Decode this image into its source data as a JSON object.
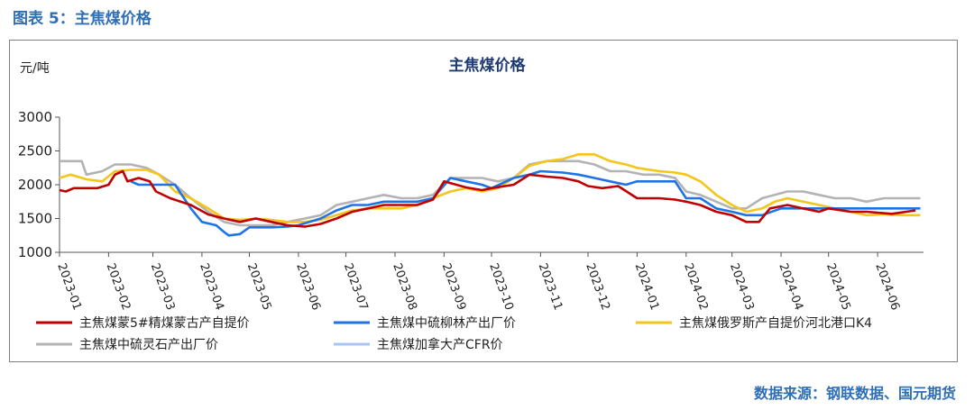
{
  "figure_title": "图表 5：主焦煤价格",
  "source_note": "数据来源：钢联数据、国元期货",
  "chart_data": {
    "type": "line",
    "title": "主焦煤价格",
    "ylabel": "元/吨",
    "xlabel": "",
    "ylim": [
      1000,
      3000
    ],
    "yticks": [
      1000,
      1500,
      2000,
      2500,
      3000
    ],
    "xlim": [
      "2023-01-01",
      "2024-06-30"
    ],
    "xticks": [
      "2023-01",
      "2023-02",
      "2023-03",
      "2023-04",
      "2023-05",
      "2023-06",
      "2023-07",
      "2023-08",
      "2023-09",
      "2023-10",
      "2023-11",
      "2023-12",
      "2024-01",
      "2024-02",
      "2024-03",
      "2024-04",
      "2024-05",
      "2024-06"
    ],
    "grid": false,
    "legend_position": "bottom",
    "series": [
      {
        "name": "主焦煤蒙5#精煤蒙古产自提价",
        "color": "#c00000",
        "points": [
          [
            "2023-01-01",
            1920
          ],
          [
            "2023-01-05",
            1900
          ],
          [
            "2023-01-10",
            1950
          ],
          [
            "2023-01-25",
            1950
          ],
          [
            "2023-02-01",
            2000
          ],
          [
            "2023-02-05",
            2150
          ],
          [
            "2023-02-10",
            2200
          ],
          [
            "2023-02-13",
            2050
          ],
          [
            "2023-02-20",
            2100
          ],
          [
            "2023-02-27",
            2050
          ],
          [
            "2023-03-03",
            1900
          ],
          [
            "2023-03-12",
            1800
          ],
          [
            "2023-03-25",
            1700
          ],
          [
            "2023-04-05",
            1560
          ],
          [
            "2023-04-15",
            1500
          ],
          [
            "2023-04-25",
            1450
          ],
          [
            "2023-05-05",
            1500
          ],
          [
            "2023-05-15",
            1450
          ],
          [
            "2023-05-25",
            1400
          ],
          [
            "2023-06-05",
            1380
          ],
          [
            "2023-06-15",
            1420
          ],
          [
            "2023-06-25",
            1500
          ],
          [
            "2023-07-05",
            1600
          ],
          [
            "2023-07-15",
            1650
          ],
          [
            "2023-07-25",
            1700
          ],
          [
            "2023-08-05",
            1700
          ],
          [
            "2023-08-15",
            1700
          ],
          [
            "2023-08-25",
            1780
          ],
          [
            "2023-09-01",
            2050
          ],
          [
            "2023-09-15",
            1960
          ],
          [
            "2023-09-25",
            1920
          ],
          [
            "2023-10-01",
            1950
          ],
          [
            "2023-10-15",
            2000
          ],
          [
            "2023-10-25",
            2150
          ],
          [
            "2023-11-05",
            2120
          ],
          [
            "2023-11-15",
            2100
          ],
          [
            "2023-11-25",
            2050
          ],
          [
            "2023-12-01",
            1980
          ],
          [
            "2023-12-10",
            1950
          ],
          [
            "2023-12-20",
            1980
          ],
          [
            "2024-01-01",
            1800
          ],
          [
            "2024-01-15",
            1800
          ],
          [
            "2024-01-25",
            1780
          ],
          [
            "2024-02-01",
            1750
          ],
          [
            "2024-02-10",
            1700
          ],
          [
            "2024-02-20",
            1600
          ],
          [
            "2024-03-01",
            1550
          ],
          [
            "2024-03-10",
            1450
          ],
          [
            "2024-03-18",
            1450
          ],
          [
            "2024-03-25",
            1650
          ],
          [
            "2024-04-05",
            1700
          ],
          [
            "2024-04-15",
            1650
          ],
          [
            "2024-04-25",
            1600
          ],
          [
            "2024-05-01",
            1650
          ],
          [
            "2024-05-15",
            1600
          ],
          [
            "2024-05-25",
            1600
          ],
          [
            "2024-06-10",
            1570
          ],
          [
            "2024-06-25",
            1620
          ]
        ]
      },
      {
        "name": "主焦煤中硫柳林产出厂价",
        "color": "#1e73e6",
        "points": [
          [
            "2023-02-15",
            2050
          ],
          [
            "2023-02-20",
            2000
          ],
          [
            "2023-03-01",
            2000
          ],
          [
            "2023-03-15",
            2000
          ],
          [
            "2023-03-25",
            1650
          ],
          [
            "2023-04-01",
            1450
          ],
          [
            "2023-04-10",
            1400
          ],
          [
            "2023-04-15",
            1300
          ],
          [
            "2023-04-18",
            1250
          ],
          [
            "2023-04-25",
            1270
          ],
          [
            "2023-05-01",
            1370
          ],
          [
            "2023-05-15",
            1370
          ],
          [
            "2023-05-25",
            1380
          ],
          [
            "2023-06-01",
            1400
          ],
          [
            "2023-06-15",
            1500
          ],
          [
            "2023-06-25",
            1620
          ],
          [
            "2023-07-05",
            1700
          ],
          [
            "2023-07-15",
            1700
          ],
          [
            "2023-07-25",
            1750
          ],
          [
            "2023-08-05",
            1750
          ],
          [
            "2023-08-15",
            1750
          ],
          [
            "2023-08-25",
            1800
          ],
          [
            "2023-09-05",
            2100
          ],
          [
            "2023-09-15",
            2050
          ],
          [
            "2023-09-25",
            2000
          ],
          [
            "2023-10-01",
            1950
          ],
          [
            "2023-10-15",
            2100
          ],
          [
            "2023-10-25",
            2150
          ],
          [
            "2023-11-01",
            2200
          ],
          [
            "2023-11-15",
            2180
          ],
          [
            "2023-11-25",
            2150
          ],
          [
            "2023-12-05",
            2100
          ],
          [
            "2023-12-15",
            2050
          ],
          [
            "2023-12-25",
            2000
          ],
          [
            "2024-01-01",
            2050
          ],
          [
            "2024-01-15",
            2050
          ],
          [
            "2024-01-25",
            2050
          ],
          [
            "2024-02-01",
            1800
          ],
          [
            "2024-02-10",
            1800
          ],
          [
            "2024-02-20",
            1650
          ],
          [
            "2024-03-01",
            1600
          ],
          [
            "2024-03-10",
            1550
          ],
          [
            "2024-03-20",
            1550
          ],
          [
            "2024-04-01",
            1650
          ],
          [
            "2024-04-15",
            1650
          ],
          [
            "2024-04-25",
            1650
          ],
          [
            "2024-05-05",
            1650
          ],
          [
            "2024-05-20",
            1650
          ],
          [
            "2024-06-10",
            1650
          ],
          [
            "2024-06-28",
            1650
          ]
        ]
      },
      {
        "name": "主焦煤俄罗斯产自提价河北港口K4",
        "color": "#f5c518",
        "points": [
          [
            "2023-01-01",
            2100
          ],
          [
            "2023-01-08",
            2150
          ],
          [
            "2023-01-18",
            2080
          ],
          [
            "2023-01-28",
            2050
          ],
          [
            "2023-02-05",
            2200
          ],
          [
            "2023-02-15",
            2220
          ],
          [
            "2023-02-25",
            2220
          ],
          [
            "2023-03-05",
            2150
          ],
          [
            "2023-03-15",
            1900
          ],
          [
            "2023-03-25",
            1800
          ],
          [
            "2023-04-05",
            1650
          ],
          [
            "2023-04-15",
            1500
          ],
          [
            "2023-04-25",
            1480
          ],
          [
            "2023-05-05",
            1500
          ],
          [
            "2023-05-15",
            1480
          ],
          [
            "2023-05-25",
            1450
          ],
          [
            "2023-06-05",
            1450
          ],
          [
            "2023-06-15",
            1480
          ],
          [
            "2023-06-25",
            1550
          ],
          [
            "2023-07-05",
            1620
          ],
          [
            "2023-07-15",
            1650
          ],
          [
            "2023-07-25",
            1650
          ],
          [
            "2023-08-05",
            1650
          ],
          [
            "2023-08-15",
            1700
          ],
          [
            "2023-08-25",
            1800
          ],
          [
            "2023-09-05",
            1900
          ],
          [
            "2023-09-15",
            1950
          ],
          [
            "2023-09-25",
            1900
          ],
          [
            "2023-10-05",
            1950
          ],
          [
            "2023-10-15",
            2100
          ],
          [
            "2023-10-25",
            2280
          ],
          [
            "2023-11-05",
            2350
          ],
          [
            "2023-11-15",
            2380
          ],
          [
            "2023-11-25",
            2450
          ],
          [
            "2023-12-05",
            2450
          ],
          [
            "2023-12-15",
            2350
          ],
          [
            "2023-12-25",
            2300
          ],
          [
            "2024-01-01",
            2250
          ],
          [
            "2024-01-15",
            2200
          ],
          [
            "2024-01-25",
            2180
          ],
          [
            "2024-02-01",
            2150
          ],
          [
            "2024-02-10",
            2050
          ],
          [
            "2024-02-20",
            1850
          ],
          [
            "2024-03-01",
            1700
          ],
          [
            "2024-03-10",
            1600
          ],
          [
            "2024-03-20",
            1650
          ],
          [
            "2024-03-28",
            1750
          ],
          [
            "2024-04-05",
            1800
          ],
          [
            "2024-04-15",
            1750
          ],
          [
            "2024-04-25",
            1700
          ],
          [
            "2024-05-05",
            1650
          ],
          [
            "2024-05-15",
            1600
          ],
          [
            "2024-05-25",
            1550
          ],
          [
            "2024-06-05",
            1560
          ],
          [
            "2024-06-15",
            1550
          ],
          [
            "2024-06-28",
            1550
          ]
        ]
      },
      {
        "name": "主焦煤中硫灵石产出厂价",
        "color": "#b3b3b3",
        "points": [
          [
            "2023-01-01",
            2350
          ],
          [
            "2023-01-15",
            2350
          ],
          [
            "2023-01-18",
            2150
          ],
          [
            "2023-01-28",
            2200
          ],
          [
            "2023-02-05",
            2300
          ],
          [
            "2023-02-15",
            2300
          ],
          [
            "2023-02-25",
            2250
          ],
          [
            "2023-03-05",
            2150
          ],
          [
            "2023-03-15",
            2000
          ],
          [
            "2023-03-25",
            1800
          ],
          [
            "2023-04-05",
            1600
          ],
          [
            "2023-04-15",
            1450
          ],
          [
            "2023-04-25",
            1400
          ],
          [
            "2023-05-05",
            1400
          ],
          [
            "2023-05-15",
            1400
          ],
          [
            "2023-05-25",
            1450
          ],
          [
            "2023-06-05",
            1500
          ],
          [
            "2023-06-15",
            1550
          ],
          [
            "2023-06-25",
            1700
          ],
          [
            "2023-07-05",
            1750
          ],
          [
            "2023-07-15",
            1800
          ],
          [
            "2023-07-25",
            1850
          ],
          [
            "2023-08-05",
            1800
          ],
          [
            "2023-08-15",
            1800
          ],
          [
            "2023-08-25",
            1850
          ],
          [
            "2023-09-05",
            2100
          ],
          [
            "2023-09-15",
            2100
          ],
          [
            "2023-09-25",
            2100
          ],
          [
            "2023-10-05",
            2050
          ],
          [
            "2023-10-15",
            2100
          ],
          [
            "2023-10-25",
            2300
          ],
          [
            "2023-11-05",
            2350
          ],
          [
            "2023-11-15",
            2350
          ],
          [
            "2023-11-25",
            2350
          ],
          [
            "2023-12-05",
            2300
          ],
          [
            "2023-12-15",
            2200
          ],
          [
            "2023-12-25",
            2200
          ],
          [
            "2024-01-05",
            2150
          ],
          [
            "2024-01-15",
            2150
          ],
          [
            "2024-01-25",
            2100
          ],
          [
            "2024-02-01",
            1900
          ],
          [
            "2024-02-10",
            1850
          ],
          [
            "2024-02-20",
            1750
          ],
          [
            "2024-03-01",
            1650
          ],
          [
            "2024-03-10",
            1650
          ],
          [
            "2024-03-20",
            1800
          ],
          [
            "2024-03-28",
            1850
          ],
          [
            "2024-04-05",
            1900
          ],
          [
            "2024-04-15",
            1900
          ],
          [
            "2024-04-25",
            1850
          ],
          [
            "2024-05-05",
            1800
          ],
          [
            "2024-05-15",
            1800
          ],
          [
            "2024-05-25",
            1750
          ],
          [
            "2024-06-05",
            1800
          ],
          [
            "2024-06-15",
            1800
          ],
          [
            "2024-06-28",
            1800
          ]
        ]
      },
      {
        "name": "主焦煤加拿大产CFR价",
        "color": "#a9c4f5",
        "points": []
      }
    ]
  }
}
